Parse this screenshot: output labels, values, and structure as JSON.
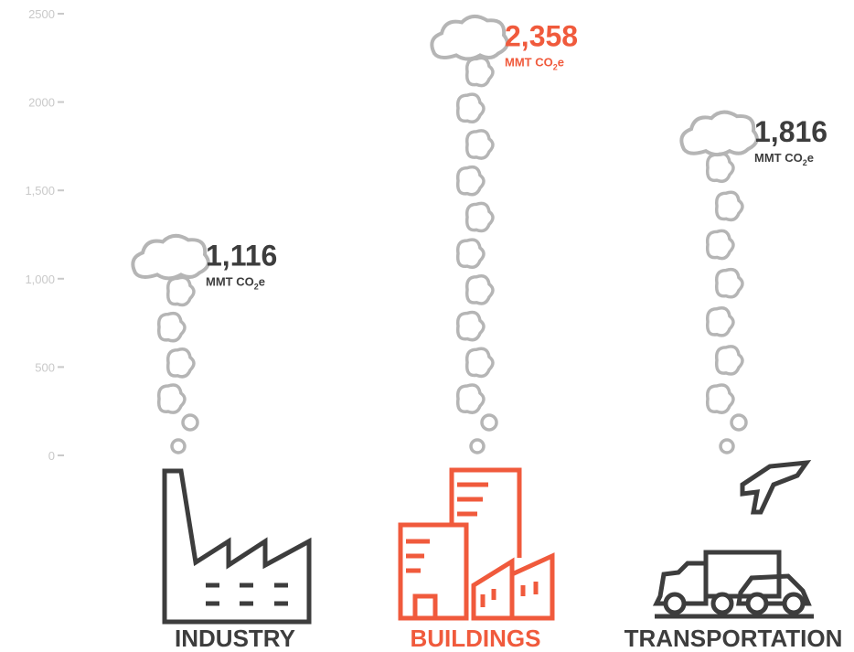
{
  "chart_data": {
    "type": "bar",
    "title": "",
    "xlabel": "",
    "ylabel": "",
    "ylim": [
      0,
      2500
    ],
    "yticks": [
      {
        "value": 0,
        "label": "0"
      },
      {
        "value": 500,
        "label": "500"
      },
      {
        "value": 1000,
        "label": "1,000"
      },
      {
        "value": 1500,
        "label": "1,500"
      },
      {
        "value": 2000,
        "label": "2000"
      },
      {
        "value": 2500,
        "label": "2500"
      }
    ],
    "categories": [
      "INDUSTRY",
      "BUILDINGS",
      "TRANSPORTATION"
    ],
    "values": [
      1116,
      2358,
      1816
    ],
    "data_labels": [
      {
        "value_text": "1,116",
        "unit_prefix": "MMT CO",
        "unit_sub": "2",
        "unit_suffix": "e"
      },
      {
        "value_text": "2,358",
        "unit_prefix": "MMT CO",
        "unit_sub": "2",
        "unit_suffix": "e"
      },
      {
        "value_text": "1,816",
        "unit_prefix": "MMT CO",
        "unit_sub": "2",
        "unit_suffix": "e"
      }
    ],
    "icons": [
      "factory-icon",
      "buildings-icon",
      "vehicles-icon"
    ],
    "colors": {
      "default": "#3d3d3d",
      "highlight": "#f05a3c",
      "smoke": "#b5b5b5",
      "axis": "#c9c9c9"
    },
    "highlight_index": 1,
    "grid": false,
    "legend": "none"
  }
}
